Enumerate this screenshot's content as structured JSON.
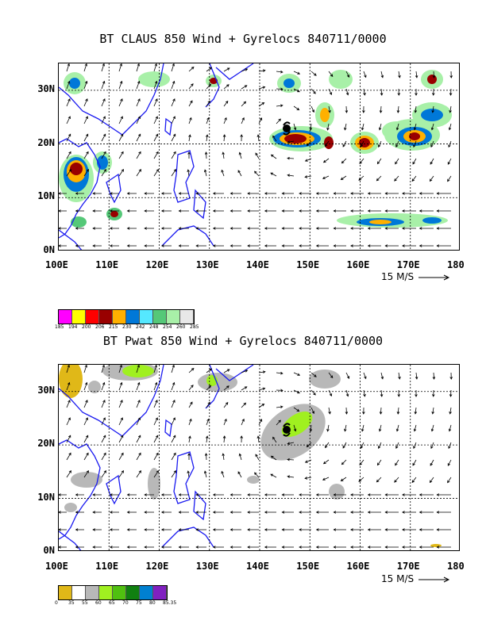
{
  "panels": [
    {
      "title": "BT CLAUS 850 Wind + Gyrelocs 840711/0000",
      "x_labels": [
        "100E",
        "110E",
        "120E",
        "130E",
        "140E",
        "150E",
        "160E",
        "170E",
        "180"
      ],
      "y_labels": [
        "30N",
        "20N",
        "10N",
        "0N"
      ],
      "vector_scale": "15 M/S",
      "colorbar": {
        "colors": [
          "#ff00ff",
          "#ffff00",
          "#ff0000",
          "#990000",
          "#ffb000",
          "#0078d8",
          "#55e8ff",
          "#55c878",
          "#a8f0a8",
          "#e8e8e8"
        ],
        "ticks": [
          "185",
          "194",
          "200",
          "206",
          "215",
          "230",
          "242",
          "248",
          "254",
          "260",
          "285"
        ]
      }
    },
    {
      "title": "BT Pwat 850 Wind + Gyrelocs 840711/0000",
      "x_labels": [
        "100E",
        "110E",
        "120E",
        "130E",
        "140E",
        "150E",
        "160E",
        "170E",
        "180"
      ],
      "y_labels": [
        "30N",
        "20N",
        "10N",
        "0N"
      ],
      "vector_scale": "15 M/S",
      "colorbar": {
        "colors": [
          "#e0b818",
          "#ffffff",
          "#b8b8b8",
          "#a0f020",
          "#50c010",
          "#108010",
          "#0080d0",
          "#8020c0"
        ],
        "ticks": [
          "0",
          "35",
          "55",
          "60",
          "65",
          "70",
          "75",
          "80",
          "85.35"
        ]
      }
    }
  ]
}
